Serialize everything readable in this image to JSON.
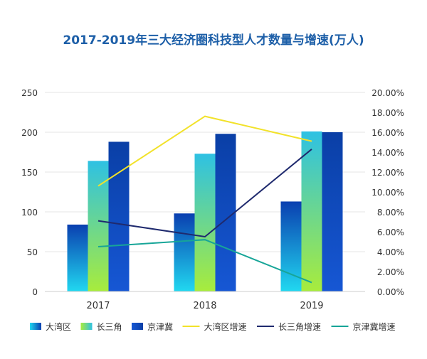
{
  "chart_data": {
    "type": "bar",
    "title": "2017-2019年三大经济圈科技型人才数量与增速(万人)",
    "categories": [
      "2017",
      "2018",
      "2019"
    ],
    "ylim": [
      0,
      250
    ],
    "y_ticks": [
      "0",
      "50",
      "100",
      "150",
      "200",
      "250"
    ],
    "y2lim": [
      0,
      20
    ],
    "y2_ticks": [
      "0.00%",
      "2.00%",
      "4.00%",
      "6.00%",
      "8.00%",
      "10.00%",
      "12.00%",
      "14.00%",
      "16.00%",
      "18.00%",
      "20.00%"
    ],
    "grid": true,
    "legend_position": "bottom",
    "bar_series": [
      {
        "name": "大湾区",
        "values": [
          84,
          98,
          113
        ],
        "gradient": [
          "#0a3fb0",
          "#21d8f0"
        ]
      },
      {
        "name": "长三角",
        "values": [
          164,
          173,
          201
        ],
        "gradient": [
          "#2ec1e3",
          "#a8ec3c"
        ]
      },
      {
        "name": "京津冀",
        "values": [
          188,
          198,
          200
        ],
        "gradient": [
          "#0a3fa6",
          "#1657d4"
        ]
      }
    ],
    "line_series": [
      {
        "name": "大湾区增速",
        "values": [
          10.6,
          17.6,
          15.1
        ],
        "color": "#f2e22a"
      },
      {
        "name": "长三角增速",
        "values": [
          7.1,
          5.5,
          14.3
        ],
        "color": "#1f2a6e"
      },
      {
        "name": "京津冀增速",
        "values": [
          4.5,
          5.2,
          0.9
        ],
        "color": "#17a598"
      }
    ],
    "colors": {
      "title": "#1d5fa8",
      "axis_text": "#333333",
      "grid": "#e6e6e6"
    }
  }
}
